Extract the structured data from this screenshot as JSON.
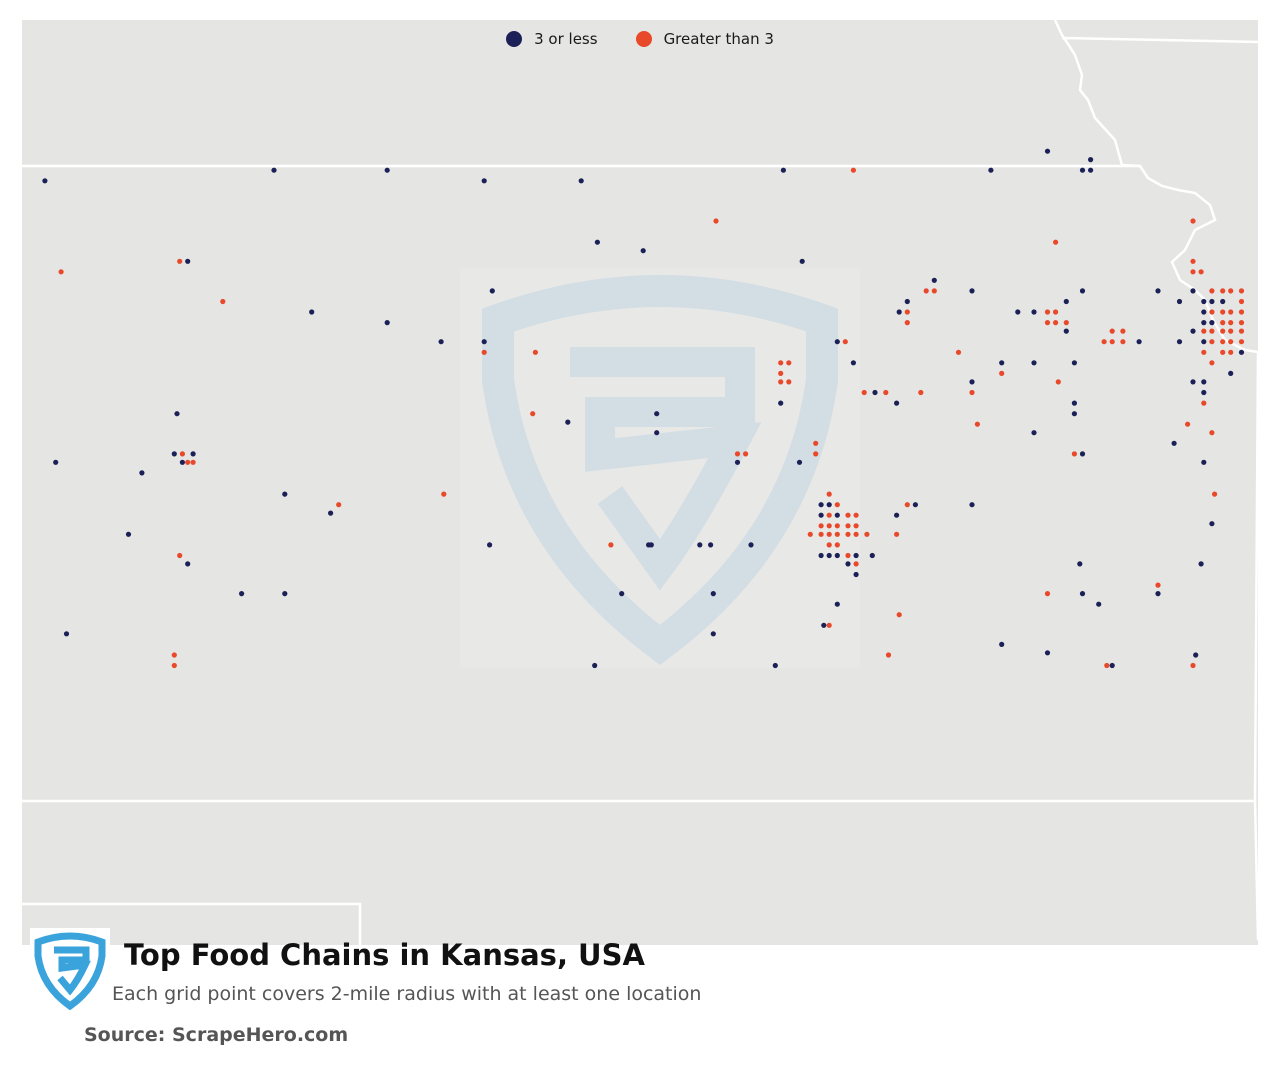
{
  "legend": {
    "items": [
      {
        "label": "3 or less",
        "color": "#1b2157"
      },
      {
        "label": "Greater than 3",
        "color": "#e8492a"
      }
    ]
  },
  "map": {
    "region": "Kansas, USA",
    "land_color": "#e5e5e3",
    "border_color": "#ffffff",
    "watermark_icon": "scrapehero-shield-icon",
    "points": [
      {
        "lng": -101.88,
        "lat": 39.93,
        "c": "low"
      },
      {
        "lng": -100.18,
        "lat": 39.98,
        "c": "low"
      },
      {
        "lng": -99.34,
        "lat": 39.98,
        "c": "low"
      },
      {
        "lng": -98.62,
        "lat": 39.93,
        "c": "low"
      },
      {
        "lng": -97.9,
        "lat": 39.93,
        "c": "low"
      },
      {
        "lng": -96.4,
        "lat": 39.98,
        "c": "low"
      },
      {
        "lng": -95.88,
        "lat": 39.98,
        "c": "high"
      },
      {
        "lng": -94.86,
        "lat": 39.98,
        "c": "low"
      },
      {
        "lng": -94.44,
        "lat": 40.07,
        "c": "low"
      },
      {
        "lng": -94.18,
        "lat": 39.98,
        "c": "low"
      },
      {
        "lng": -94.12,
        "lat": 39.98,
        "c": "low"
      },
      {
        "lng": -94.12,
        "lat": 40.03,
        "c": "low"
      },
      {
        "lng": -101.76,
        "lat": 39.5,
        "c": "high"
      },
      {
        "lng": -100.88,
        "lat": 39.55,
        "c": "high"
      },
      {
        "lng": -100.82,
        "lat": 39.55,
        "c": "low"
      },
      {
        "lng": -100.56,
        "lat": 39.36,
        "c": "high"
      },
      {
        "lng": -96.9,
        "lat": 39.74,
        "c": "high"
      },
      {
        "lng": -97.44,
        "lat": 39.6,
        "c": "low"
      },
      {
        "lng": -97.78,
        "lat": 39.64,
        "c": "low"
      },
      {
        "lng": -96.26,
        "lat": 39.55,
        "c": "low"
      },
      {
        "lng": -94.38,
        "lat": 39.64,
        "c": "high"
      },
      {
        "lng": -93.36,
        "lat": 39.74,
        "c": "high"
      },
      {
        "lng": -99.9,
        "lat": 39.31,
        "c": "low"
      },
      {
        "lng": -99.34,
        "lat": 39.26,
        "c": "low"
      },
      {
        "lng": -98.94,
        "lat": 39.17,
        "c": "low"
      },
      {
        "lng": -98.62,
        "lat": 39.17,
        "c": "low"
      },
      {
        "lng": -98.62,
        "lat": 39.12,
        "c": "high"
      },
      {
        "lng": -98.24,
        "lat": 39.12,
        "c": "high"
      },
      {
        "lng": -98.56,
        "lat": 39.41,
        "c": "low"
      },
      {
        "lng": -96.42,
        "lat": 39.07,
        "c": "high"
      },
      {
        "lng": -96.36,
        "lat": 39.07,
        "c": "high"
      },
      {
        "lng": -96.42,
        "lat": 39.02,
        "c": "high"
      },
      {
        "lng": -96.0,
        "lat": 39.17,
        "c": "low"
      },
      {
        "lng": -95.94,
        "lat": 39.17,
        "c": "high"
      },
      {
        "lng": -95.54,
        "lat": 39.31,
        "c": "low"
      },
      {
        "lng": -95.48,
        "lat": 39.36,
        "c": "low"
      },
      {
        "lng": -95.48,
        "lat": 39.31,
        "c": "high"
      },
      {
        "lng": -95.48,
        "lat": 39.26,
        "c": "high"
      },
      {
        "lng": -95.34,
        "lat": 39.41,
        "c": "high"
      },
      {
        "lng": -95.28,
        "lat": 39.41,
        "c": "high"
      },
      {
        "lng": -95.28,
        "lat": 39.46,
        "c": "low"
      },
      {
        "lng": -95.0,
        "lat": 39.41,
        "c": "low"
      },
      {
        "lng": -94.66,
        "lat": 39.31,
        "c": "low"
      },
      {
        "lng": -94.54,
        "lat": 39.31,
        "c": "low"
      },
      {
        "lng": -94.44,
        "lat": 39.31,
        "c": "high"
      },
      {
        "lng": -94.44,
        "lat": 39.26,
        "c": "high"
      },
      {
        "lng": -94.38,
        "lat": 39.31,
        "c": "high"
      },
      {
        "lng": -94.38,
        "lat": 39.26,
        "c": "high"
      },
      {
        "lng": -94.3,
        "lat": 39.26,
        "c": "high"
      },
      {
        "lng": -94.3,
        "lat": 39.36,
        "c": "low"
      },
      {
        "lng": -94.3,
        "lat": 39.22,
        "c": "low"
      },
      {
        "lng": -94.18,
        "lat": 39.41,
        "c": "low"
      },
      {
        "lng": -94.02,
        "lat": 39.17,
        "c": "high"
      },
      {
        "lng": -93.96,
        "lat": 39.17,
        "c": "high"
      },
      {
        "lng": -93.88,
        "lat": 39.17,
        "c": "high"
      },
      {
        "lng": -93.96,
        "lat": 39.22,
        "c": "high"
      },
      {
        "lng": -93.88,
        "lat": 39.22,
        "c": "high"
      },
      {
        "lng": -93.76,
        "lat": 39.17,
        "c": "low"
      },
      {
        "lng": -93.62,
        "lat": 39.41,
        "c": "low"
      },
      {
        "lng": -93.46,
        "lat": 39.36,
        "c": "low"
      },
      {
        "lng": -93.46,
        "lat": 39.17,
        "c": "low"
      },
      {
        "lng": -93.36,
        "lat": 39.55,
        "c": "high"
      },
      {
        "lng": -93.3,
        "lat": 39.5,
        "c": "high"
      },
      {
        "lng": -93.36,
        "lat": 39.5,
        "c": "high"
      },
      {
        "lng": -93.36,
        "lat": 39.41,
        "c": "low"
      },
      {
        "lng": -93.36,
        "lat": 39.22,
        "c": "low"
      },
      {
        "lng": -93.36,
        "lat": 38.98,
        "c": "low"
      },
      {
        "lng": -93.28,
        "lat": 39.36,
        "c": "low"
      },
      {
        "lng": -93.28,
        "lat": 39.31,
        "c": "low"
      },
      {
        "lng": -93.28,
        "lat": 39.26,
        "c": "low"
      },
      {
        "lng": -93.28,
        "lat": 39.22,
        "c": "high"
      },
      {
        "lng": -93.28,
        "lat": 39.17,
        "c": "low"
      },
      {
        "lng": -93.28,
        "lat": 39.12,
        "c": "high"
      },
      {
        "lng": -93.28,
        "lat": 38.98,
        "c": "low"
      },
      {
        "lng": -93.28,
        "lat": 38.93,
        "c": "low"
      },
      {
        "lng": -93.22,
        "lat": 39.41,
        "c": "high"
      },
      {
        "lng": -93.22,
        "lat": 39.36,
        "c": "low"
      },
      {
        "lng": -93.22,
        "lat": 39.31,
        "c": "high"
      },
      {
        "lng": -93.22,
        "lat": 39.26,
        "c": "low"
      },
      {
        "lng": -93.22,
        "lat": 39.22,
        "c": "high"
      },
      {
        "lng": -93.22,
        "lat": 39.17,
        "c": "high"
      },
      {
        "lng": -93.22,
        "lat": 39.07,
        "c": "high"
      },
      {
        "lng": -93.14,
        "lat": 39.41,
        "c": "high"
      },
      {
        "lng": -93.14,
        "lat": 39.36,
        "c": "low"
      },
      {
        "lng": -93.14,
        "lat": 39.31,
        "c": "high"
      },
      {
        "lng": -93.14,
        "lat": 39.26,
        "c": "high"
      },
      {
        "lng": -93.14,
        "lat": 39.22,
        "c": "high"
      },
      {
        "lng": -93.14,
        "lat": 39.17,
        "c": "high"
      },
      {
        "lng": -93.14,
        "lat": 39.12,
        "c": "high"
      },
      {
        "lng": -93.08,
        "lat": 39.41,
        "c": "high"
      },
      {
        "lng": -93.08,
        "lat": 39.31,
        "c": "high"
      },
      {
        "lng": -93.08,
        "lat": 39.26,
        "c": "high"
      },
      {
        "lng": -93.08,
        "lat": 39.22,
        "c": "high"
      },
      {
        "lng": -93.08,
        "lat": 39.17,
        "c": "high"
      },
      {
        "lng": -93.08,
        "lat": 39.12,
        "c": "high"
      },
      {
        "lng": -93.0,
        "lat": 39.41,
        "c": "high"
      },
      {
        "lng": -93.0,
        "lat": 39.36,
        "c": "high"
      },
      {
        "lng": -93.0,
        "lat": 39.31,
        "c": "high"
      },
      {
        "lng": -93.0,
        "lat": 39.26,
        "c": "high"
      },
      {
        "lng": -93.0,
        "lat": 39.22,
        "c": "high"
      },
      {
        "lng": -93.0,
        "lat": 39.17,
        "c": "high"
      },
      {
        "lng": -93.0,
        "lat": 39.12,
        "c": "low"
      },
      {
        "lng": -93.08,
        "lat": 39.02,
        "c": "low"
      },
      {
        "lng": -93.28,
        "lat": 38.88,
        "c": "high"
      },
      {
        "lng": -94.78,
        "lat": 39.07,
        "c": "low"
      },
      {
        "lng": -94.78,
        "lat": 39.02,
        "c": "high"
      },
      {
        "lng": -95.1,
        "lat": 39.12,
        "c": "high"
      },
      {
        "lng": -94.54,
        "lat": 39.07,
        "c": "low"
      },
      {
        "lng": -94.24,
        "lat": 39.07,
        "c": "low"
      },
      {
        "lng": -94.24,
        "lat": 38.88,
        "c": "low"
      },
      {
        "lng": -94.24,
        "lat": 38.83,
        "c": "low"
      },
      {
        "lng": -94.96,
        "lat": 38.78,
        "c": "high"
      },
      {
        "lng": -95.72,
        "lat": 38.93,
        "c": "low"
      },
      {
        "lng": -95.88,
        "lat": 39.07,
        "c": "low"
      },
      {
        "lng": -95.8,
        "lat": 38.93,
        "c": "high"
      },
      {
        "lng": -95.64,
        "lat": 38.93,
        "c": "high"
      },
      {
        "lng": -95.56,
        "lat": 38.88,
        "c": "low"
      },
      {
        "lng": -95.38,
        "lat": 38.93,
        "c": "high"
      },
      {
        "lng": -95.0,
        "lat": 38.93,
        "c": "high"
      },
      {
        "lng": -95.0,
        "lat": 38.98,
        "c": "low"
      },
      {
        "lng": -94.36,
        "lat": 38.98,
        "c": "high"
      },
      {
        "lng": -94.54,
        "lat": 38.74,
        "c": "low"
      },
      {
        "lng": -94.24,
        "lat": 38.64,
        "c": "high"
      },
      {
        "lng": -94.18,
        "lat": 38.64,
        "c": "low"
      },
      {
        "lng": -93.4,
        "lat": 38.78,
        "c": "high"
      },
      {
        "lng": -93.28,
        "lat": 38.6,
        "c": "low"
      },
      {
        "lng": -100.9,
        "lat": 38.83,
        "c": "low"
      },
      {
        "lng": -101.8,
        "lat": 38.6,
        "c": "low"
      },
      {
        "lng": -101.16,
        "lat": 38.55,
        "c": "low"
      },
      {
        "lng": -100.92,
        "lat": 38.64,
        "c": "low"
      },
      {
        "lng": -100.86,
        "lat": 38.6,
        "c": "low"
      },
      {
        "lng": -100.78,
        "lat": 38.64,
        "c": "low"
      },
      {
        "lng": -100.86,
        "lat": 38.64,
        "c": "high"
      },
      {
        "lng": -100.78,
        "lat": 38.6,
        "c": "high"
      },
      {
        "lng": -100.82,
        "lat": 38.6,
        "c": "high"
      },
      {
        "lng": -100.1,
        "lat": 38.45,
        "c": "low"
      },
      {
        "lng": -99.7,
        "lat": 38.4,
        "c": "high"
      },
      {
        "lng": -98.26,
        "lat": 38.83,
        "c": "high"
      },
      {
        "lng": -98.0,
        "lat": 38.79,
        "c": "low"
      },
      {
        "lng": -97.34,
        "lat": 38.83,
        "c": "low"
      },
      {
        "lng": -97.34,
        "lat": 38.74,
        "c": "low"
      },
      {
        "lng": -96.74,
        "lat": 38.64,
        "c": "high"
      },
      {
        "lng": -96.68,
        "lat": 38.64,
        "c": "high"
      },
      {
        "lng": -96.74,
        "lat": 38.6,
        "c": "low"
      },
      {
        "lng": -96.42,
        "lat": 38.88,
        "c": "low"
      },
      {
        "lng": -96.42,
        "lat": 38.98,
        "c": "high"
      },
      {
        "lng": -96.36,
        "lat": 38.98,
        "c": "high"
      },
      {
        "lng": -96.28,
        "lat": 38.6,
        "c": "low"
      },
      {
        "lng": -96.16,
        "lat": 38.64,
        "c": "high"
      },
      {
        "lng": -96.16,
        "lat": 38.69,
        "c": "high"
      },
      {
        "lng": -96.06,
        "lat": 38.45,
        "c": "high"
      },
      {
        "lng": -96.12,
        "lat": 38.4,
        "c": "low"
      },
      {
        "lng": -96.06,
        "lat": 38.4,
        "c": "low"
      },
      {
        "lng": -96.12,
        "lat": 38.35,
        "c": "low"
      },
      {
        "lng": -96.0,
        "lat": 38.35,
        "c": "low"
      },
      {
        "lng": -96.0,
        "lat": 38.4,
        "c": "high"
      },
      {
        "lng": -96.06,
        "lat": 38.35,
        "c": "high"
      },
      {
        "lng": -95.92,
        "lat": 38.35,
        "c": "high"
      },
      {
        "lng": -95.86,
        "lat": 38.35,
        "c": "high"
      },
      {
        "lng": -96.12,
        "lat": 38.3,
        "c": "high"
      },
      {
        "lng": -96.06,
        "lat": 38.3,
        "c": "high"
      },
      {
        "lng": -96.0,
        "lat": 38.3,
        "c": "high"
      },
      {
        "lng": -95.92,
        "lat": 38.3,
        "c": "high"
      },
      {
        "lng": -95.86,
        "lat": 38.3,
        "c": "high"
      },
      {
        "lng": -96.12,
        "lat": 38.26,
        "c": "high"
      },
      {
        "lng": -96.06,
        "lat": 38.26,
        "c": "high"
      },
      {
        "lng": -96.0,
        "lat": 38.26,
        "c": "high"
      },
      {
        "lng": -95.92,
        "lat": 38.26,
        "c": "high"
      },
      {
        "lng": -95.86,
        "lat": 38.26,
        "c": "high"
      },
      {
        "lng": -96.2,
        "lat": 38.26,
        "c": "high"
      },
      {
        "lng": -95.78,
        "lat": 38.26,
        "c": "high"
      },
      {
        "lng": -96.06,
        "lat": 38.21,
        "c": "high"
      },
      {
        "lng": -96.0,
        "lat": 38.21,
        "c": "high"
      },
      {
        "lng": -96.12,
        "lat": 38.16,
        "c": "low"
      },
      {
        "lng": -96.06,
        "lat": 38.16,
        "c": "low"
      },
      {
        "lng": -96.0,
        "lat": 38.16,
        "c": "low"
      },
      {
        "lng": -95.92,
        "lat": 38.16,
        "c": "high"
      },
      {
        "lng": -95.86,
        "lat": 38.16,
        "c": "low"
      },
      {
        "lng": -95.92,
        "lat": 38.12,
        "c": "low"
      },
      {
        "lng": -95.86,
        "lat": 38.12,
        "c": "high"
      },
      {
        "lng": -95.86,
        "lat": 38.07,
        "c": "low"
      },
      {
        "lng": -95.74,
        "lat": 38.16,
        "c": "low"
      },
      {
        "lng": -95.56,
        "lat": 38.35,
        "c": "low"
      },
      {
        "lng": -95.48,
        "lat": 38.4,
        "c": "high"
      },
      {
        "lng": -95.42,
        "lat": 38.4,
        "c": "low"
      },
      {
        "lng": -95.56,
        "lat": 38.26,
        "c": "high"
      },
      {
        "lng": -95.0,
        "lat": 38.4,
        "c": "low"
      },
      {
        "lng": -96.0,
        "lat": 37.93,
        "c": "low"
      },
      {
        "lng": -96.1,
        "lat": 37.83,
        "c": "low"
      },
      {
        "lng": -96.06,
        "lat": 37.83,
        "c": "high"
      },
      {
        "lng": -95.54,
        "lat": 37.88,
        "c": "high"
      },
      {
        "lng": -95.62,
        "lat": 37.69,
        "c": "high"
      },
      {
        "lng": -96.64,
        "lat": 38.21,
        "c": "low"
      },
      {
        "lng": -96.94,
        "lat": 38.21,
        "c": "low"
      },
      {
        "lng": -97.4,
        "lat": 38.21,
        "c": "low"
      },
      {
        "lng": -97.02,
        "lat": 38.21,
        "c": "low"
      },
      {
        "lng": -97.68,
        "lat": 38.21,
        "c": "high"
      },
      {
        "lng": -97.38,
        "lat": 38.21,
        "c": "low"
      },
      {
        "lng": -98.58,
        "lat": 38.21,
        "c": "low"
      },
      {
        "lng": -98.92,
        "lat": 38.45,
        "c": "high"
      },
      {
        "lng": -99.76,
        "lat": 38.36,
        "c": "low"
      },
      {
        "lng": -100.88,
        "lat": 38.16,
        "c": "high"
      },
      {
        "lng": -101.26,
        "lat": 38.26,
        "c": "low"
      },
      {
        "lng": -100.82,
        "lat": 38.12,
        "c": "low"
      },
      {
        "lng": -100.42,
        "lat": 37.98,
        "c": "low"
      },
      {
        "lng": -100.1,
        "lat": 37.98,
        "c": "low"
      },
      {
        "lng": -101.72,
        "lat": 37.79,
        "c": "low"
      },
      {
        "lng": -100.92,
        "lat": 37.69,
        "c": "high"
      },
      {
        "lng": -100.92,
        "lat": 37.64,
        "c": "high"
      },
      {
        "lng": -97.6,
        "lat": 37.98,
        "c": "low"
      },
      {
        "lng": -96.92,
        "lat": 37.98,
        "c": "low"
      },
      {
        "lng": -96.92,
        "lat": 37.79,
        "c": "low"
      },
      {
        "lng": -96.46,
        "lat": 37.64,
        "c": "low"
      },
      {
        "lng": -97.8,
        "lat": 37.64,
        "c": "low"
      },
      {
        "lng": -94.78,
        "lat": 37.74,
        "c": "low"
      },
      {
        "lng": -94.2,
        "lat": 38.12,
        "c": "low"
      },
      {
        "lng": -94.06,
        "lat": 37.93,
        "c": "low"
      },
      {
        "lng": -94.0,
        "lat": 37.64,
        "c": "high"
      },
      {
        "lng": -93.96,
        "lat": 37.64,
        "c": "low"
      },
      {
        "lng": -93.62,
        "lat": 38.02,
        "c": "high"
      },
      {
        "lng": -93.62,
        "lat": 37.98,
        "c": "low"
      },
      {
        "lng": -93.36,
        "lat": 37.64,
        "c": "high"
      },
      {
        "lng": -93.3,
        "lat": 38.12,
        "c": "low"
      },
      {
        "lng": -93.34,
        "lat": 37.69,
        "c": "low"
      },
      {
        "lng": -93.2,
        "lat": 38.45,
        "c": "high"
      },
      {
        "lng": -93.22,
        "lat": 38.31,
        "c": "low"
      },
      {
        "lng": -93.5,
        "lat": 38.69,
        "c": "low"
      },
      {
        "lng": -93.22,
        "lat": 38.74,
        "c": "high"
      },
      {
        "lng": -94.44,
        "lat": 37.7,
        "c": "low"
      },
      {
        "lng": -94.44,
        "lat": 37.98,
        "c": "high"
      },
      {
        "lng": -94.18,
        "lat": 37.98,
        "c": "low"
      }
    ]
  },
  "footer": {
    "logo_icon": "scrapehero-logo-icon",
    "title": "Top Food Chains in Kansas, USA",
    "subtitle": "Each grid point covers 2-mile radius with at least one location",
    "source": "Source: ScrapeHero.com"
  }
}
